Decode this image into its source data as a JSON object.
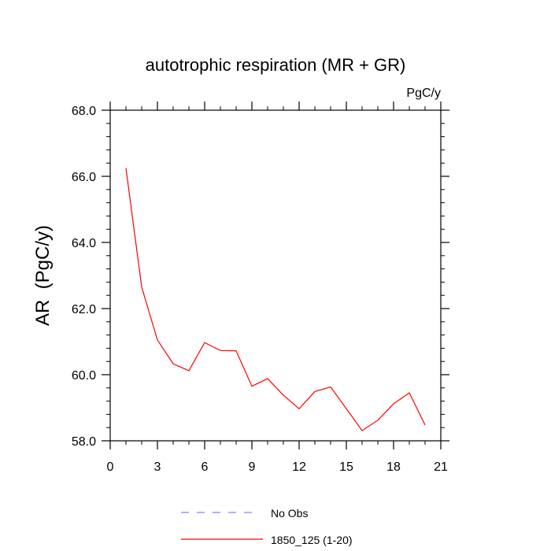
{
  "chart_data": {
    "type": "line",
    "title": "autotrophic respiration (MR + GR)",
    "units_label": "PgC/y",
    "xlabel": "",
    "ylabel": "AR  (PgC/y)",
    "xlim": [
      0,
      21
    ],
    "ylim": [
      58.0,
      68.0
    ],
    "x_ticks": [
      0,
      3,
      6,
      9,
      12,
      15,
      18,
      21
    ],
    "x_tick_labels": [
      "0",
      "3",
      "6",
      "9",
      "12",
      "15",
      "18",
      "21"
    ],
    "y_ticks": [
      58.0,
      60.0,
      62.0,
      64.0,
      66.0,
      68.0
    ],
    "y_tick_labels": [
      "58.0",
      "60.0",
      "62.0",
      "64.0",
      "66.0",
      "68.0"
    ],
    "grid": false,
    "legend_position": "bottom-center",
    "series": [
      {
        "name": "1850_125 (1-20)",
        "color": "#ff0000",
        "style": "solid",
        "x": [
          1,
          2,
          3,
          4,
          5,
          6,
          7,
          8,
          9,
          10,
          11,
          12,
          13,
          14,
          15,
          16,
          17,
          18,
          19,
          20
        ],
        "values": [
          66.25,
          62.65,
          61.05,
          60.33,
          60.12,
          60.97,
          60.73,
          60.72,
          59.65,
          59.88,
          59.38,
          58.97,
          59.49,
          59.63,
          58.97,
          58.31,
          58.62,
          59.12,
          59.45,
          58.48
        ]
      }
    ],
    "legend": [
      {
        "label": "No Obs",
        "color": "#8080ff",
        "style": "dashed"
      },
      {
        "label": "1850_125 (1-20)",
        "color": "#ff0000",
        "style": "solid"
      }
    ]
  }
}
